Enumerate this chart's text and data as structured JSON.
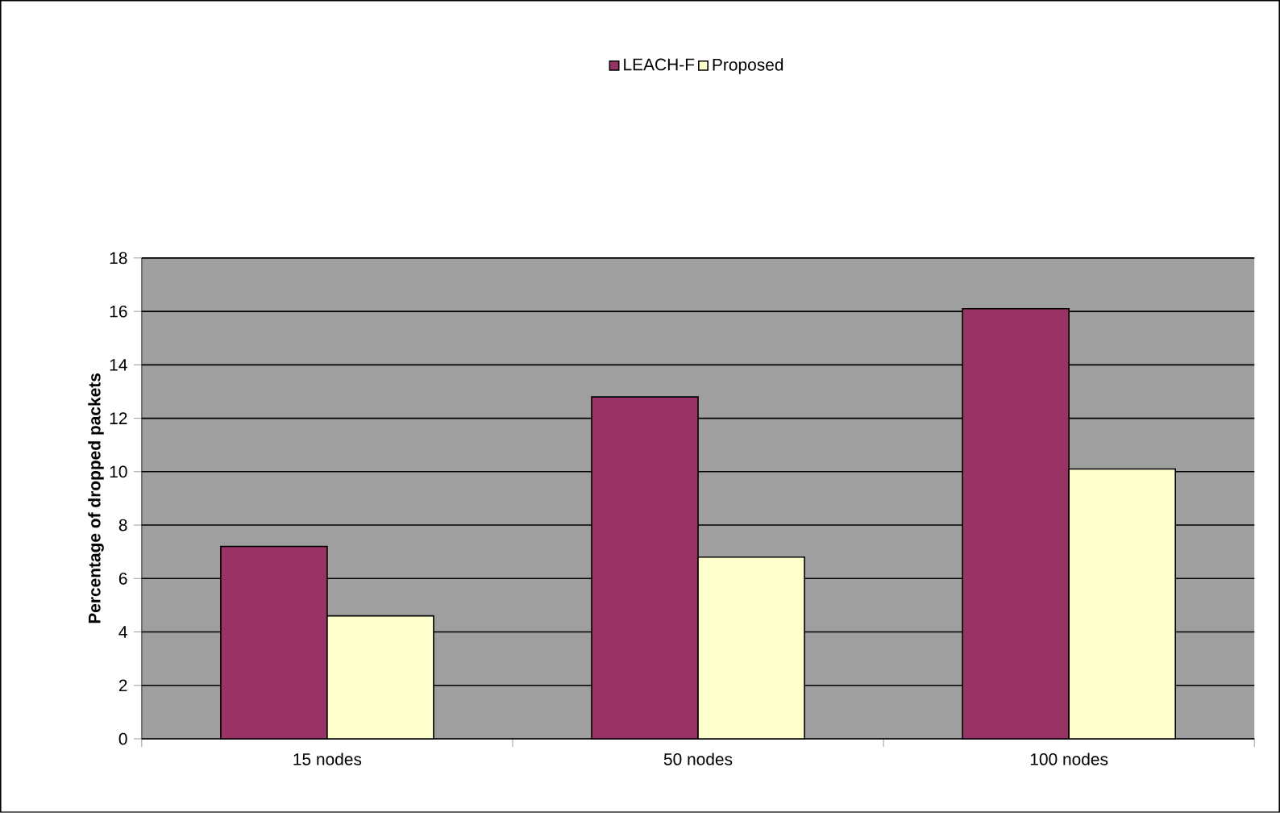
{
  "chart_data": {
    "type": "bar",
    "ylabel": "Percentage of dropped packets",
    "categories": [
      "15 nodes",
      "50 nodes",
      "100 nodes"
    ],
    "series": [
      {
        "name": "LEACH-F",
        "color": "#993366",
        "values": [
          7.2,
          12.8,
          16.1
        ]
      },
      {
        "name": "Proposed",
        "color": "#ffffcc",
        "values": [
          4.6,
          6.8,
          10.1
        ]
      }
    ],
    "ylim": [
      0,
      18
    ],
    "yticks": [
      0,
      2,
      4,
      6,
      8,
      10,
      12,
      14,
      16,
      18
    ],
    "grid": "y",
    "legend": "top"
  }
}
